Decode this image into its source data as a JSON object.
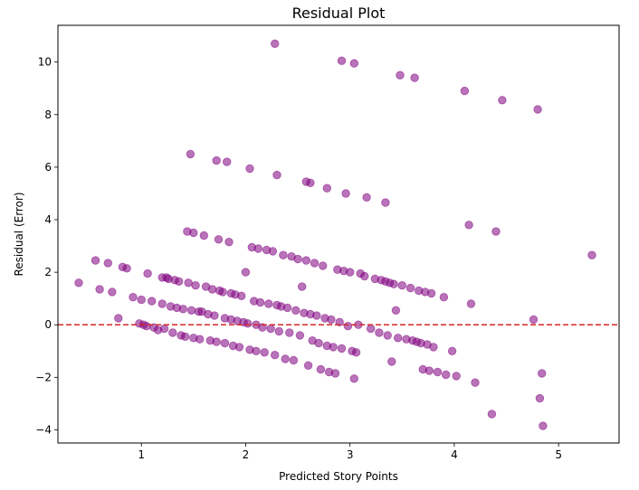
{
  "chart_data": {
    "type": "scatter",
    "title": "Residual Plot",
    "xlabel": "Predicted Story Points",
    "ylabel": "Residual (Error)",
    "xlim": [
      0.2,
      5.58
    ],
    "ylim": [
      -4.5,
      11.4
    ],
    "xticks": [
      1,
      2,
      3,
      4,
      5
    ],
    "yticks": [
      -4,
      -2,
      0,
      2,
      4,
      6,
      8,
      10
    ],
    "grid": false,
    "marker_color": "#800080",
    "marker_alpha": 0.55,
    "reference_line": {
      "y": 0,
      "color": "#d62728",
      "style": "dashed"
    },
    "points": [
      [
        0.4,
        1.6
      ],
      [
        0.56,
        2.45
      ],
      [
        0.6,
        1.35
      ],
      [
        0.68,
        2.35
      ],
      [
        0.72,
        1.25
      ],
      [
        0.78,
        0.25
      ],
      [
        0.82,
        2.2
      ],
      [
        0.86,
        2.15
      ],
      [
        0.92,
        1.05
      ],
      [
        0.98,
        0.05
      ],
      [
        1.0,
        0.95
      ],
      [
        1.02,
        0.0
      ],
      [
        1.05,
        -0.05
      ],
      [
        1.06,
        1.95
      ],
      [
        1.1,
        0.9
      ],
      [
        1.12,
        -0.1
      ],
      [
        1.16,
        -0.2
      ],
      [
        1.2,
        1.8
      ],
      [
        1.2,
        0.8
      ],
      [
        1.22,
        -0.15
      ],
      [
        1.24,
        1.8
      ],
      [
        1.26,
        1.75
      ],
      [
        1.28,
        0.7
      ],
      [
        1.3,
        -0.3
      ],
      [
        1.32,
        1.7
      ],
      [
        1.34,
        0.65
      ],
      [
        1.36,
        1.65
      ],
      [
        1.38,
        -0.4
      ],
      [
        1.4,
        0.6
      ],
      [
        1.42,
        -0.45
      ],
      [
        1.44,
        3.55
      ],
      [
        1.45,
        1.6
      ],
      [
        1.47,
        6.5
      ],
      [
        1.48,
        0.55
      ],
      [
        1.5,
        3.5
      ],
      [
        1.5,
        -0.5
      ],
      [
        1.52,
        1.5
      ],
      [
        1.55,
        0.5
      ],
      [
        1.56,
        -0.55
      ],
      [
        1.58,
        0.5
      ],
      [
        1.6,
        3.4
      ],
      [
        1.62,
        1.45
      ],
      [
        1.64,
        0.4
      ],
      [
        1.66,
        -0.6
      ],
      [
        1.68,
        1.35
      ],
      [
        1.7,
        0.35
      ],
      [
        1.72,
        6.25
      ],
      [
        1.72,
        -0.65
      ],
      [
        1.74,
        3.25
      ],
      [
        1.75,
        1.3
      ],
      [
        1.78,
        1.25
      ],
      [
        1.8,
        0.25
      ],
      [
        1.8,
        -0.7
      ],
      [
        1.82,
        6.2
      ],
      [
        1.84,
        3.15
      ],
      [
        1.86,
        1.2
      ],
      [
        1.86,
        0.2
      ],
      [
        1.88,
        -0.8
      ],
      [
        1.9,
        1.15
      ],
      [
        1.92,
        0.15
      ],
      [
        1.94,
        -0.85
      ],
      [
        1.96,
        1.1
      ],
      [
        1.98,
        0.1
      ],
      [
        2.0,
        2.0
      ],
      [
        2.02,
        0.05
      ],
      [
        2.04,
        5.95
      ],
      [
        2.04,
        -0.95
      ],
      [
        2.06,
        2.95
      ],
      [
        2.08,
        0.9
      ],
      [
        2.1,
        0.0
      ],
      [
        2.1,
        -1.0
      ],
      [
        2.12,
        2.9
      ],
      [
        2.14,
        0.85
      ],
      [
        2.16,
        -0.1
      ],
      [
        2.18,
        -1.05
      ],
      [
        2.2,
        2.85
      ],
      [
        2.22,
        0.8
      ],
      [
        2.24,
        -0.15
      ],
      [
        2.26,
        2.8
      ],
      [
        2.28,
        10.7
      ],
      [
        2.28,
        -1.15
      ],
      [
        2.3,
        5.7
      ],
      [
        2.3,
        0.75
      ],
      [
        2.32,
        -0.25
      ],
      [
        2.34,
        0.7
      ],
      [
        2.36,
        2.65
      ],
      [
        2.38,
        -1.3
      ],
      [
        2.4,
        0.65
      ],
      [
        2.42,
        -0.3
      ],
      [
        2.44,
        2.6
      ],
      [
        2.46,
        -1.35
      ],
      [
        2.48,
        0.55
      ],
      [
        2.5,
        2.5
      ],
      [
        2.52,
        -0.4
      ],
      [
        2.54,
        1.45
      ],
      [
        2.56,
        0.45
      ],
      [
        2.58,
        5.45
      ],
      [
        2.58,
        2.45
      ],
      [
        2.6,
        -1.55
      ],
      [
        2.62,
        5.4
      ],
      [
        2.62,
        0.4
      ],
      [
        2.64,
        -0.6
      ],
      [
        2.66,
        2.35
      ],
      [
        2.68,
        0.35
      ],
      [
        2.7,
        -0.7
      ],
      [
        2.72,
        -1.7
      ],
      [
        2.74,
        2.25
      ],
      [
        2.76,
        0.25
      ],
      [
        2.78,
        5.2
      ],
      [
        2.78,
        -0.8
      ],
      [
        2.8,
        -1.8
      ],
      [
        2.82,
        0.2
      ],
      [
        2.84,
        -0.85
      ],
      [
        2.86,
        -1.85
      ],
      [
        2.88,
        2.1
      ],
      [
        2.9,
        0.1
      ],
      [
        2.92,
        10.05
      ],
      [
        2.92,
        -0.9
      ],
      [
        2.94,
        2.05
      ],
      [
        2.96,
        5.0
      ],
      [
        2.98,
        -0.05
      ],
      [
        3.0,
        2.0
      ],
      [
        3.02,
        -1.0
      ],
      [
        3.04,
        9.95
      ],
      [
        3.04,
        -2.05
      ],
      [
        3.06,
        -1.05
      ],
      [
        3.08,
        0.0
      ],
      [
        3.1,
        1.95
      ],
      [
        3.14,
        1.85
      ],
      [
        3.16,
        4.85
      ],
      [
        3.2,
        -0.15
      ],
      [
        3.24,
        1.75
      ],
      [
        3.28,
        -0.3
      ],
      [
        3.3,
        1.7
      ],
      [
        3.34,
        4.65
      ],
      [
        3.34,
        1.65
      ],
      [
        3.36,
        -0.4
      ],
      [
        3.38,
        1.6
      ],
      [
        3.4,
        -1.4
      ],
      [
        3.42,
        1.55
      ],
      [
        3.44,
        0.55
      ],
      [
        3.46,
        -0.5
      ],
      [
        3.48,
        9.5
      ],
      [
        3.5,
        1.5
      ],
      [
        3.54,
        -0.55
      ],
      [
        3.58,
        1.4
      ],
      [
        3.6,
        -0.6
      ],
      [
        3.62,
        9.4
      ],
      [
        3.64,
        -0.65
      ],
      [
        3.66,
        1.3
      ],
      [
        3.68,
        -0.7
      ],
      [
        3.7,
        -1.7
      ],
      [
        3.72,
        1.25
      ],
      [
        3.74,
        -0.75
      ],
      [
        3.76,
        -1.75
      ],
      [
        3.78,
        1.2
      ],
      [
        3.8,
        -0.85
      ],
      [
        3.84,
        -1.8
      ],
      [
        3.9,
        1.05
      ],
      [
        3.92,
        -1.9
      ],
      [
        3.98,
        -1.0
      ],
      [
        4.02,
        -1.95
      ],
      [
        4.1,
        8.9
      ],
      [
        4.14,
        3.8
      ],
      [
        4.16,
        0.8
      ],
      [
        4.2,
        -2.2
      ],
      [
        4.36,
        -3.4
      ],
      [
        4.4,
        3.55
      ],
      [
        4.46,
        8.55
      ],
      [
        4.76,
        0.2
      ],
      [
        4.8,
        8.2
      ],
      [
        4.82,
        -2.8
      ],
      [
        4.84,
        -1.85
      ],
      [
        4.85,
        -3.85
      ],
      [
        5.32,
        2.65
      ]
    ]
  }
}
